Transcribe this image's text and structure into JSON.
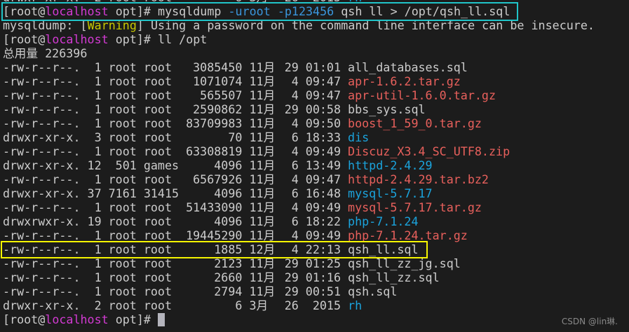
{
  "colors": {
    "background": "#1c1c1c",
    "text": "#cccccc",
    "hostname": "#d23ad2",
    "option": "#3a96dd",
    "warning": "#c8c800",
    "archive": "#e8605c",
    "directory": "#1ba3dc",
    "command_highlight_box": "#20c4c8",
    "file_highlight_box": "#f5f500"
  },
  "prompt": {
    "open": "[root@",
    "host": "localhost",
    "rest": " opt]# "
  },
  "command1": {
    "cmd": "mysqldump ",
    "opt1": "-uroot -p123456",
    "args": " qsh ll > /opt/qsh_ll.sql"
  },
  "warning_line": {
    "pre": "mysqldump: [",
    "word": "Warning",
    "post": "] Using a password on the command line interface can be insecure."
  },
  "command2": "ll /opt",
  "total": "总用量 226396",
  "partial_top": {
    "perms": "drwxr-xr-x.",
    "links": "2",
    "owner": "root",
    "group": "root",
    "size": "6",
    "month": "3月",
    "day": "26",
    "time": "2015",
    "name": "rh",
    "type": "dir"
  },
  "files": [
    {
      "perms": "-rw-r--r--.",
      "links": "1",
      "owner": "root",
      "group": "root",
      "size": "3085450",
      "month": "11月",
      "day": "29",
      "time": "01:01",
      "name": "all_databases.sql",
      "type": "file"
    },
    {
      "perms": "-rw-r--r--.",
      "links": "1",
      "owner": "root",
      "group": "root",
      "size": "1071074",
      "month": "11月",
      "day": "4",
      "time": "09:47",
      "name": "apr-1.6.2.tar.gz",
      "type": "archive"
    },
    {
      "perms": "-rw-r--r--.",
      "links": "1",
      "owner": "root",
      "group": "root",
      "size": "565507",
      "month": "11月",
      "day": "4",
      "time": "09:47",
      "name": "apr-util-1.6.0.tar.gz",
      "type": "archive"
    },
    {
      "perms": "-rw-r--r--.",
      "links": "1",
      "owner": "root",
      "group": "root",
      "size": "2590862",
      "month": "11月",
      "day": "29",
      "time": "00:58",
      "name": "bbs_sys.sql",
      "type": "file"
    },
    {
      "perms": "-rw-r--r--.",
      "links": "1",
      "owner": "root",
      "group": "root",
      "size": "83709983",
      "month": "11月",
      "day": "4",
      "time": "09:50",
      "name": "boost_1_59_0.tar.gz",
      "type": "archive"
    },
    {
      "perms": "drwxr-xr-x.",
      "links": "3",
      "owner": "root",
      "group": "root",
      "size": "70",
      "month": "11月",
      "day": "6",
      "time": "18:33",
      "name": "dis",
      "type": "dir"
    },
    {
      "perms": "-rw-r--r--.",
      "links": "1",
      "owner": "root",
      "group": "root",
      "size": "63308819",
      "month": "11月",
      "day": "4",
      "time": "09:49",
      "name": "Discuz_X3.4_SC_UTF8.zip",
      "type": "archive"
    },
    {
      "perms": "drwxr-xr-x.",
      "links": "12",
      "owner": "501",
      "group": "games",
      "size": "4096",
      "month": "11月",
      "day": "6",
      "time": "13:49",
      "name": "httpd-2.4.29",
      "type": "dir"
    },
    {
      "perms": "-rw-r--r--.",
      "links": "1",
      "owner": "root",
      "group": "root",
      "size": "6567926",
      "month": "11月",
      "day": "4",
      "time": "09:47",
      "name": "httpd-2.4.29.tar.bz2",
      "type": "archive"
    },
    {
      "perms": "drwxr-xr-x.",
      "links": "37",
      "owner": "7161",
      "group": "31415",
      "size": "4096",
      "month": "11月",
      "day": "6",
      "time": "16:48",
      "name": "mysql-5.7.17",
      "type": "dir"
    },
    {
      "perms": "-rw-r--r--.",
      "links": "1",
      "owner": "root",
      "group": "root",
      "size": "51433090",
      "month": "11月",
      "day": "4",
      "time": "09:49",
      "name": "mysql-5.7.17.tar.gz",
      "type": "archive"
    },
    {
      "perms": "drwxrwxr-x.",
      "links": "19",
      "owner": "root",
      "group": "root",
      "size": "4096",
      "month": "11月",
      "day": "6",
      "time": "18:22",
      "name": "php-7.1.24",
      "type": "dir"
    },
    {
      "perms": "-rw-r--r--.",
      "links": "1",
      "owner": "root",
      "group": "root",
      "size": "19445290",
      "month": "11月",
      "day": "4",
      "time": "09:49",
      "name": "php-7.1.24.tar.gz",
      "type": "archive"
    },
    {
      "perms": "-rw-r--r--.",
      "links": "1",
      "owner": "root",
      "group": "root",
      "size": "1885",
      "month": "12月",
      "day": "4",
      "time": "22:13",
      "name": "qsh_ll.sql",
      "type": "file",
      "highlighted": true
    },
    {
      "perms": "-rw-r--r--.",
      "links": "1",
      "owner": "root",
      "group": "root",
      "size": "2123",
      "month": "11月",
      "day": "29",
      "time": "01:25",
      "name": "qsh_ll_zz_jg.sql",
      "type": "file"
    },
    {
      "perms": "-rw-r--r--.",
      "links": "1",
      "owner": "root",
      "group": "root",
      "size": "2660",
      "month": "11月",
      "day": "29",
      "time": "01:16",
      "name": "qsh_ll_zz.sql",
      "type": "file"
    },
    {
      "perms": "-rw-r--r--.",
      "links": "1",
      "owner": "root",
      "group": "root",
      "size": "2794",
      "month": "11月",
      "day": "29",
      "time": "00:51",
      "name": "qsh.sql",
      "type": "file"
    },
    {
      "perms": "drwxr-xr-x.",
      "links": "2",
      "owner": "root",
      "group": "root",
      "size": "6",
      "month": "3月",
      "day": "26",
      "time": "2015",
      "name": "rh",
      "type": "dir"
    }
  ],
  "watermark": "CSDN @lin琳."
}
